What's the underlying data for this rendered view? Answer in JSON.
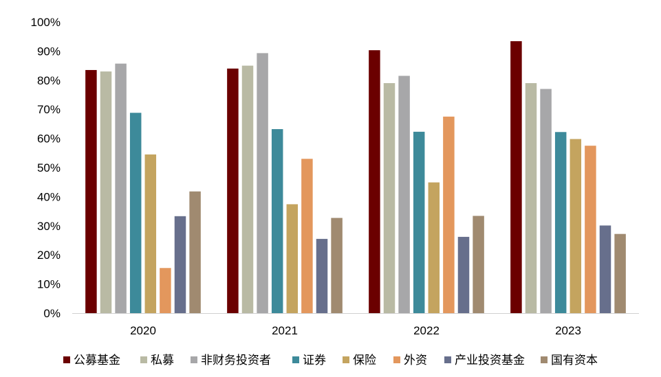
{
  "chart_data": {
    "type": "bar",
    "title": "",
    "xlabel": "",
    "ylabel": "",
    "ylim": [
      0,
      100
    ],
    "y_ticks": [
      "0%",
      "10%",
      "20%",
      "30%",
      "40%",
      "50%",
      "60%",
      "70%",
      "80%",
      "90%",
      "100%"
    ],
    "grid": false,
    "legend_position": "bottom",
    "categories": [
      "2020",
      "2021",
      "2022",
      "2023"
    ],
    "series": [
      {
        "name": "公募基金",
        "color": "#6b0000",
        "values": [
          83.5,
          84.0,
          90.3,
          93.4
        ]
      },
      {
        "name": "私募",
        "color": "#b9baa4",
        "values": [
          83.0,
          85.0,
          79.0,
          79.0
        ]
      },
      {
        "name": "非财务投资者",
        "color": "#a7a7a9",
        "values": [
          85.7,
          89.3,
          81.5,
          77.0
        ]
      },
      {
        "name": "证券",
        "color": "#3d8a9a",
        "values": [
          68.8,
          63.2,
          62.3,
          62.2
        ]
      },
      {
        "name": "保险",
        "color": "#c4a45f",
        "values": [
          54.5,
          37.4,
          44.9,
          59.8
        ]
      },
      {
        "name": "外资",
        "color": "#e3975d",
        "values": [
          15.5,
          53.0,
          67.5,
          57.5
        ]
      },
      {
        "name": "产业投资基金",
        "color": "#676f8c",
        "values": [
          33.3,
          25.5,
          26.2,
          30.1
        ]
      },
      {
        "name": "国有资本",
        "color": "#a08a70",
        "values": [
          41.8,
          32.7,
          33.4,
          27.2
        ]
      }
    ]
  }
}
